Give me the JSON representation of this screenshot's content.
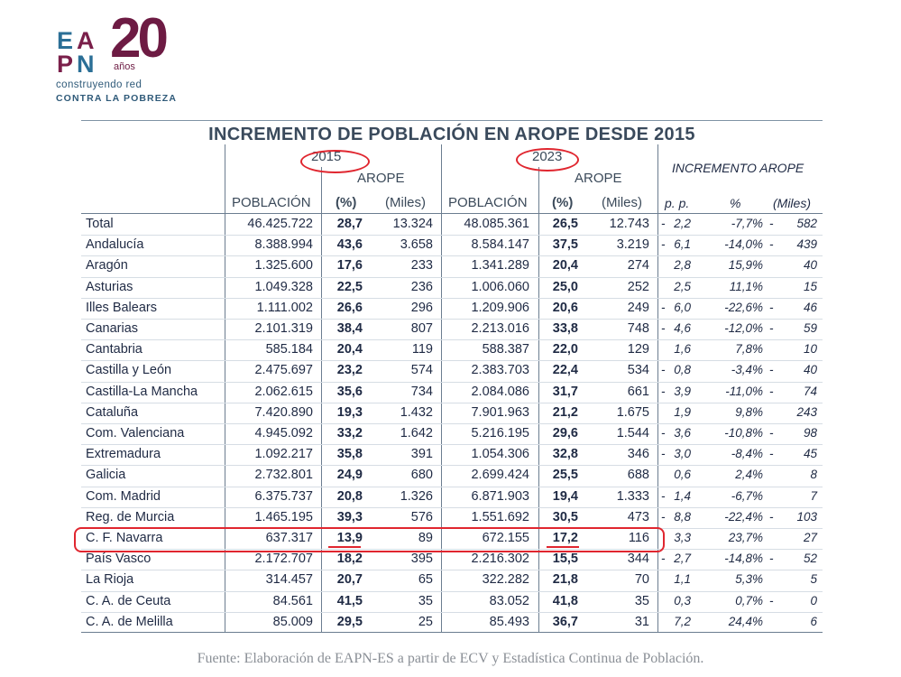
{
  "logo": {
    "letters": [
      "E",
      "A",
      "P",
      "N"
    ],
    "number": "20",
    "years": "años",
    "tagline1": "construyendo red",
    "tagline2": "CONTRA LA POBREZA"
  },
  "table": {
    "title": "INCREMENTO DE POBLACIÓN EN AROPE DESDE 2015",
    "year1": "2015",
    "year2": "2023",
    "arope": "AROPE",
    "increment_header": "INCREMENTO AROPE",
    "columns": [
      "POBLACIÓN",
      "(%)",
      "(Miles)",
      "POBLACIÓN",
      "(%)",
      "(Miles)",
      "p. p.",
      "%",
      "(Miles)"
    ],
    "rows": [
      {
        "region": "Total",
        "pob2015": "46.425.722",
        "pct2015": "28,7",
        "miles2015": "13.324",
        "pob2023": "48.085.361",
        "pct2023": "26,5",
        "miles2023": "12.743",
        "pp_sign": "-",
        "pp": "2,2",
        "inc_pct": "-7,7%",
        "inc_sign": "-",
        "inc_miles": "582"
      },
      {
        "region": "Andalucía",
        "pob2015": "8.388.994",
        "pct2015": "43,6",
        "miles2015": "3.658",
        "pob2023": "8.584.147",
        "pct2023": "37,5",
        "miles2023": "3.219",
        "pp_sign": "-",
        "pp": "6,1",
        "inc_pct": "-14,0%",
        "inc_sign": "-",
        "inc_miles": "439"
      },
      {
        "region": "Aragón",
        "pob2015": "1.325.600",
        "pct2015": "17,6",
        "miles2015": "233",
        "pob2023": "1.341.289",
        "pct2023": "20,4",
        "miles2023": "274",
        "pp_sign": "",
        "pp": "2,8",
        "inc_pct": "15,9%",
        "inc_sign": "",
        "inc_miles": "40"
      },
      {
        "region": "Asturias",
        "pob2015": "1.049.328",
        "pct2015": "22,5",
        "miles2015": "236",
        "pob2023": "1.006.060",
        "pct2023": "25,0",
        "miles2023": "252",
        "pp_sign": "",
        "pp": "2,5",
        "inc_pct": "11,1%",
        "inc_sign": "",
        "inc_miles": "15"
      },
      {
        "region": "Illes Balears",
        "pob2015": "1.111.002",
        "pct2015": "26,6",
        "miles2015": "296",
        "pob2023": "1.209.906",
        "pct2023": "20,6",
        "miles2023": "249",
        "pp_sign": "-",
        "pp": "6,0",
        "inc_pct": "-22,6%",
        "inc_sign": "-",
        "inc_miles": "46"
      },
      {
        "region": "Canarias",
        "pob2015": "2.101.319",
        "pct2015": "38,4",
        "miles2015": "807",
        "pob2023": "2.213.016",
        "pct2023": "33,8",
        "miles2023": "748",
        "pp_sign": "-",
        "pp": "4,6",
        "inc_pct": "-12,0%",
        "inc_sign": "-",
        "inc_miles": "59"
      },
      {
        "region": "Cantabria",
        "pob2015": "585.184",
        "pct2015": "20,4",
        "miles2015": "119",
        "pob2023": "588.387",
        "pct2023": "22,0",
        "miles2023": "129",
        "pp_sign": "",
        "pp": "1,6",
        "inc_pct": "7,8%",
        "inc_sign": "",
        "inc_miles": "10"
      },
      {
        "region": "Castilla y León",
        "pob2015": "2.475.697",
        "pct2015": "23,2",
        "miles2015": "574",
        "pob2023": "2.383.703",
        "pct2023": "22,4",
        "miles2023": "534",
        "pp_sign": "-",
        "pp": "0,8",
        "inc_pct": "-3,4%",
        "inc_sign": "-",
        "inc_miles": "40"
      },
      {
        "region": "Castilla-La Mancha",
        "pob2015": "2.062.615",
        "pct2015": "35,6",
        "miles2015": "734",
        "pob2023": "2.084.086",
        "pct2023": "31,7",
        "miles2023": "661",
        "pp_sign": "-",
        "pp": "3,9",
        "inc_pct": "-11,0%",
        "inc_sign": "-",
        "inc_miles": "74"
      },
      {
        "region": "Cataluña",
        "pob2015": "7.420.890",
        "pct2015": "19,3",
        "miles2015": "1.432",
        "pob2023": "7.901.963",
        "pct2023": "21,2",
        "miles2023": "1.675",
        "pp_sign": "",
        "pp": "1,9",
        "inc_pct": "9,8%",
        "inc_sign": "",
        "inc_miles": "243"
      },
      {
        "region": "Com. Valenciana",
        "pob2015": "4.945.092",
        "pct2015": "33,2",
        "miles2015": "1.642",
        "pob2023": "5.216.195",
        "pct2023": "29,6",
        "miles2023": "1.544",
        "pp_sign": "-",
        "pp": "3,6",
        "inc_pct": "-10,8%",
        "inc_sign": "-",
        "inc_miles": "98"
      },
      {
        "region": "Extremadura",
        "pob2015": "1.092.217",
        "pct2015": "35,8",
        "miles2015": "391",
        "pob2023": "1.054.306",
        "pct2023": "32,8",
        "miles2023": "346",
        "pp_sign": "-",
        "pp": "3,0",
        "inc_pct": "-8,4%",
        "inc_sign": "-",
        "inc_miles": "45"
      },
      {
        "region": "Galicia",
        "pob2015": "2.732.801",
        "pct2015": "24,9",
        "miles2015": "680",
        "pob2023": "2.699.424",
        "pct2023": "25,5",
        "miles2023": "688",
        "pp_sign": "",
        "pp": "0,6",
        "inc_pct": "2,4%",
        "inc_sign": "",
        "inc_miles": "8"
      },
      {
        "region": "Com. Madrid",
        "pob2015": "6.375.737",
        "pct2015": "20,8",
        "miles2015": "1.326",
        "pob2023": "6.871.903",
        "pct2023": "19,4",
        "miles2023": "1.333",
        "pp_sign": "-",
        "pp": "1,4",
        "inc_pct": "-6,7%",
        "inc_sign": "",
        "inc_miles": "7"
      },
      {
        "region": "Reg. de Murcia",
        "pob2015": "1.465.195",
        "pct2015": "39,3",
        "miles2015": "576",
        "pob2023": "1.551.692",
        "pct2023": "30,5",
        "miles2023": "473",
        "pp_sign": "-",
        "pp": "8,8",
        "inc_pct": "-22,4%",
        "inc_sign": "-",
        "inc_miles": "103"
      },
      {
        "region": "C. F. Navarra",
        "pob2015": "637.317",
        "pct2015": "13,9",
        "miles2015": "89",
        "pob2023": "672.155",
        "pct2023": "17,2",
        "miles2023": "116",
        "pp_sign": "",
        "pp": "3,3",
        "inc_pct": "23,7%",
        "inc_sign": "",
        "inc_miles": "27"
      },
      {
        "region": "País Vasco",
        "pob2015": "2.172.707",
        "pct2015": "18,2",
        "miles2015": "395",
        "pob2023": "2.216.302",
        "pct2023": "15,5",
        "miles2023": "344",
        "pp_sign": "-",
        "pp": "2,7",
        "inc_pct": "-14,8%",
        "inc_sign": "-",
        "inc_miles": "52"
      },
      {
        "region": "La Rioja",
        "pob2015": "314.457",
        "pct2015": "20,7",
        "miles2015": "65",
        "pob2023": "322.282",
        "pct2023": "21,8",
        "miles2023": "70",
        "pp_sign": "",
        "pp": "1,1",
        "inc_pct": "5,3%",
        "inc_sign": "",
        "inc_miles": "5"
      },
      {
        "region": "C. A. de Ceuta",
        "pob2015": "84.561",
        "pct2015": "41,5",
        "miles2015": "35",
        "pob2023": "83.052",
        "pct2023": "41,8",
        "miles2023": "35",
        "pp_sign": "",
        "pp": "0,3",
        "inc_pct": "0,7%",
        "inc_sign": "-",
        "inc_miles": "0"
      },
      {
        "region": "C. A. de Melilla",
        "pob2015": "85.009",
        "pct2015": "29,5",
        "miles2015": "25",
        "pob2023": "85.493",
        "pct2023": "36,7",
        "miles2023": "31",
        "pp_sign": "",
        "pp": "7,2",
        "inc_pct": "24,4%",
        "inc_sign": "",
        "inc_miles": "6"
      }
    ]
  },
  "source": "Fuente: Elaboración de EAPN-ES a partir de ECV y Estadística Continua de Población.",
  "colors": {
    "highlight": "#e0262f",
    "brand_maroon": "#6d1b43",
    "brand_blue": "#2b6f96"
  }
}
